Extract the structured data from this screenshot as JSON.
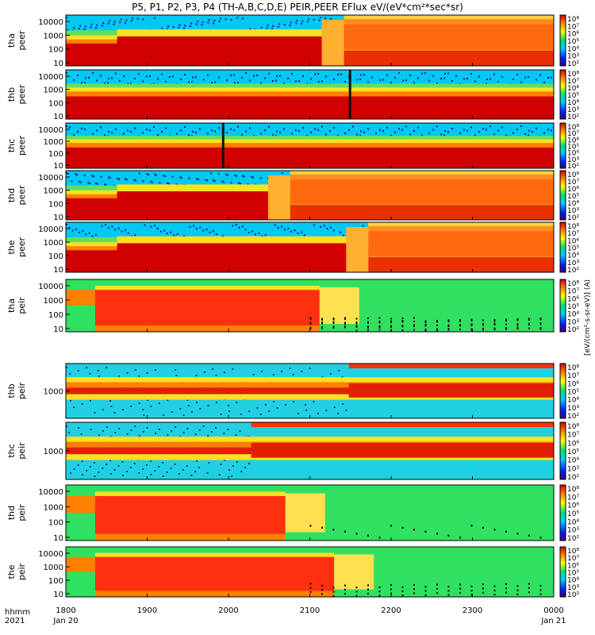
{
  "title": "P5, P1, P2, P3, P4 (TH-A,B,C,D,E) PEIR,PEER EFlux eV/(eV*cm²*sec*sr)",
  "time_axis": {
    "row_label_1": "hhmm",
    "row_label_2": "2021",
    "ticks": [
      "1800",
      "1900",
      "2000",
      "2100",
      "2200",
      "2300",
      "0000"
    ],
    "date_left": "Jan 20",
    "date_right": "Jan 21"
  },
  "colorbar_label": "[eV/(cm²-s-sr-eV)] (A)",
  "colorbar_ticks": [
    "10⁸",
    "10⁷",
    "10⁶",
    "10⁵",
    "10⁴",
    "10³",
    "10²"
  ],
  "chart_data": {
    "type": "heatmap",
    "x_range": [
      "1800",
      "0000"
    ],
    "panels": [
      {
        "label1": "tha",
        "label2": "peer",
        "yticks": [
          "10000",
          "1000",
          "100",
          "10"
        ]
      },
      {
        "label1": "thb",
        "label2": "peer",
        "yticks": [
          "10000",
          "1000",
          "100",
          "10"
        ]
      },
      {
        "label1": "thc",
        "label2": "peer",
        "yticks": [
          "10000",
          "1000",
          "100",
          "10"
        ]
      },
      {
        "label1": "thd",
        "label2": "peer",
        "yticks": [
          "10000",
          "1000",
          "100",
          "10"
        ]
      },
      {
        "label1": "the",
        "label2": "peer",
        "yticks": [
          "10000",
          "1000",
          "100",
          "10"
        ]
      },
      {
        "label1": "tha",
        "label2": "peir",
        "yticks": [
          "10000",
          "1000",
          "100",
          "10"
        ]
      },
      {
        "label1": "thb",
        "label2": "peir",
        "yticks": [
          "1000"
        ]
      },
      {
        "label1": "thc",
        "label2": "peir",
        "yticks": [
          "1000"
        ]
      },
      {
        "label1": "thd",
        "label2": "peir",
        "yticks": [
          "10000",
          "1000",
          "100",
          "10"
        ]
      },
      {
        "label1": "the",
        "label2": "peir",
        "yticks": [
          "10000",
          "1000",
          "100",
          "10"
        ]
      }
    ]
  }
}
